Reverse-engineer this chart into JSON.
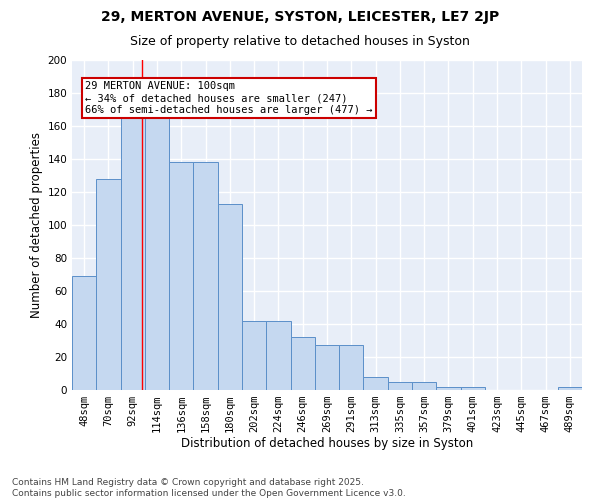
{
  "title1": "29, MERTON AVENUE, SYSTON, LEICESTER, LE7 2JP",
  "title2": "Size of property relative to detached houses in Syston",
  "xlabel": "Distribution of detached houses by size in Syston",
  "ylabel": "Number of detached properties",
  "bar_color": "#c5d8f0",
  "bar_edge_color": "#5b8fc9",
  "background_color": "#e8eef8",
  "grid_color": "#ffffff",
  "annotation_box_color": "#cc0000",
  "annotation_text": "29 MERTON AVENUE: 100sqm\n← 34% of detached houses are smaller (247)\n66% of semi-detached houses are larger (477) →",
  "categories": [
    "48sqm",
    "70sqm",
    "92sqm",
    "114sqm",
    "136sqm",
    "158sqm",
    "180sqm",
    "202sqm",
    "224sqm",
    "246sqm",
    "269sqm",
    "291sqm",
    "313sqm",
    "335sqm",
    "357sqm",
    "379sqm",
    "401sqm",
    "423sqm",
    "445sqm",
    "467sqm",
    "489sqm"
  ],
  "values": [
    69,
    128,
    165,
    165,
    138,
    138,
    113,
    42,
    42,
    32,
    27,
    27,
    8,
    5,
    5,
    2,
    2,
    0,
    0,
    0,
    2
  ],
  "ylim": [
    0,
    200
  ],
  "yticks": [
    0,
    20,
    40,
    60,
    80,
    100,
    120,
    140,
    160,
    180,
    200
  ],
  "footnote": "Contains HM Land Registry data © Crown copyright and database right 2025.\nContains public sector information licensed under the Open Government Licence v3.0.",
  "title1_fontsize": 10,
  "title2_fontsize": 9,
  "xlabel_fontsize": 8.5,
  "ylabel_fontsize": 8.5,
  "tick_fontsize": 7.5,
  "annot_fontsize": 7.5,
  "footnote_fontsize": 6.5
}
